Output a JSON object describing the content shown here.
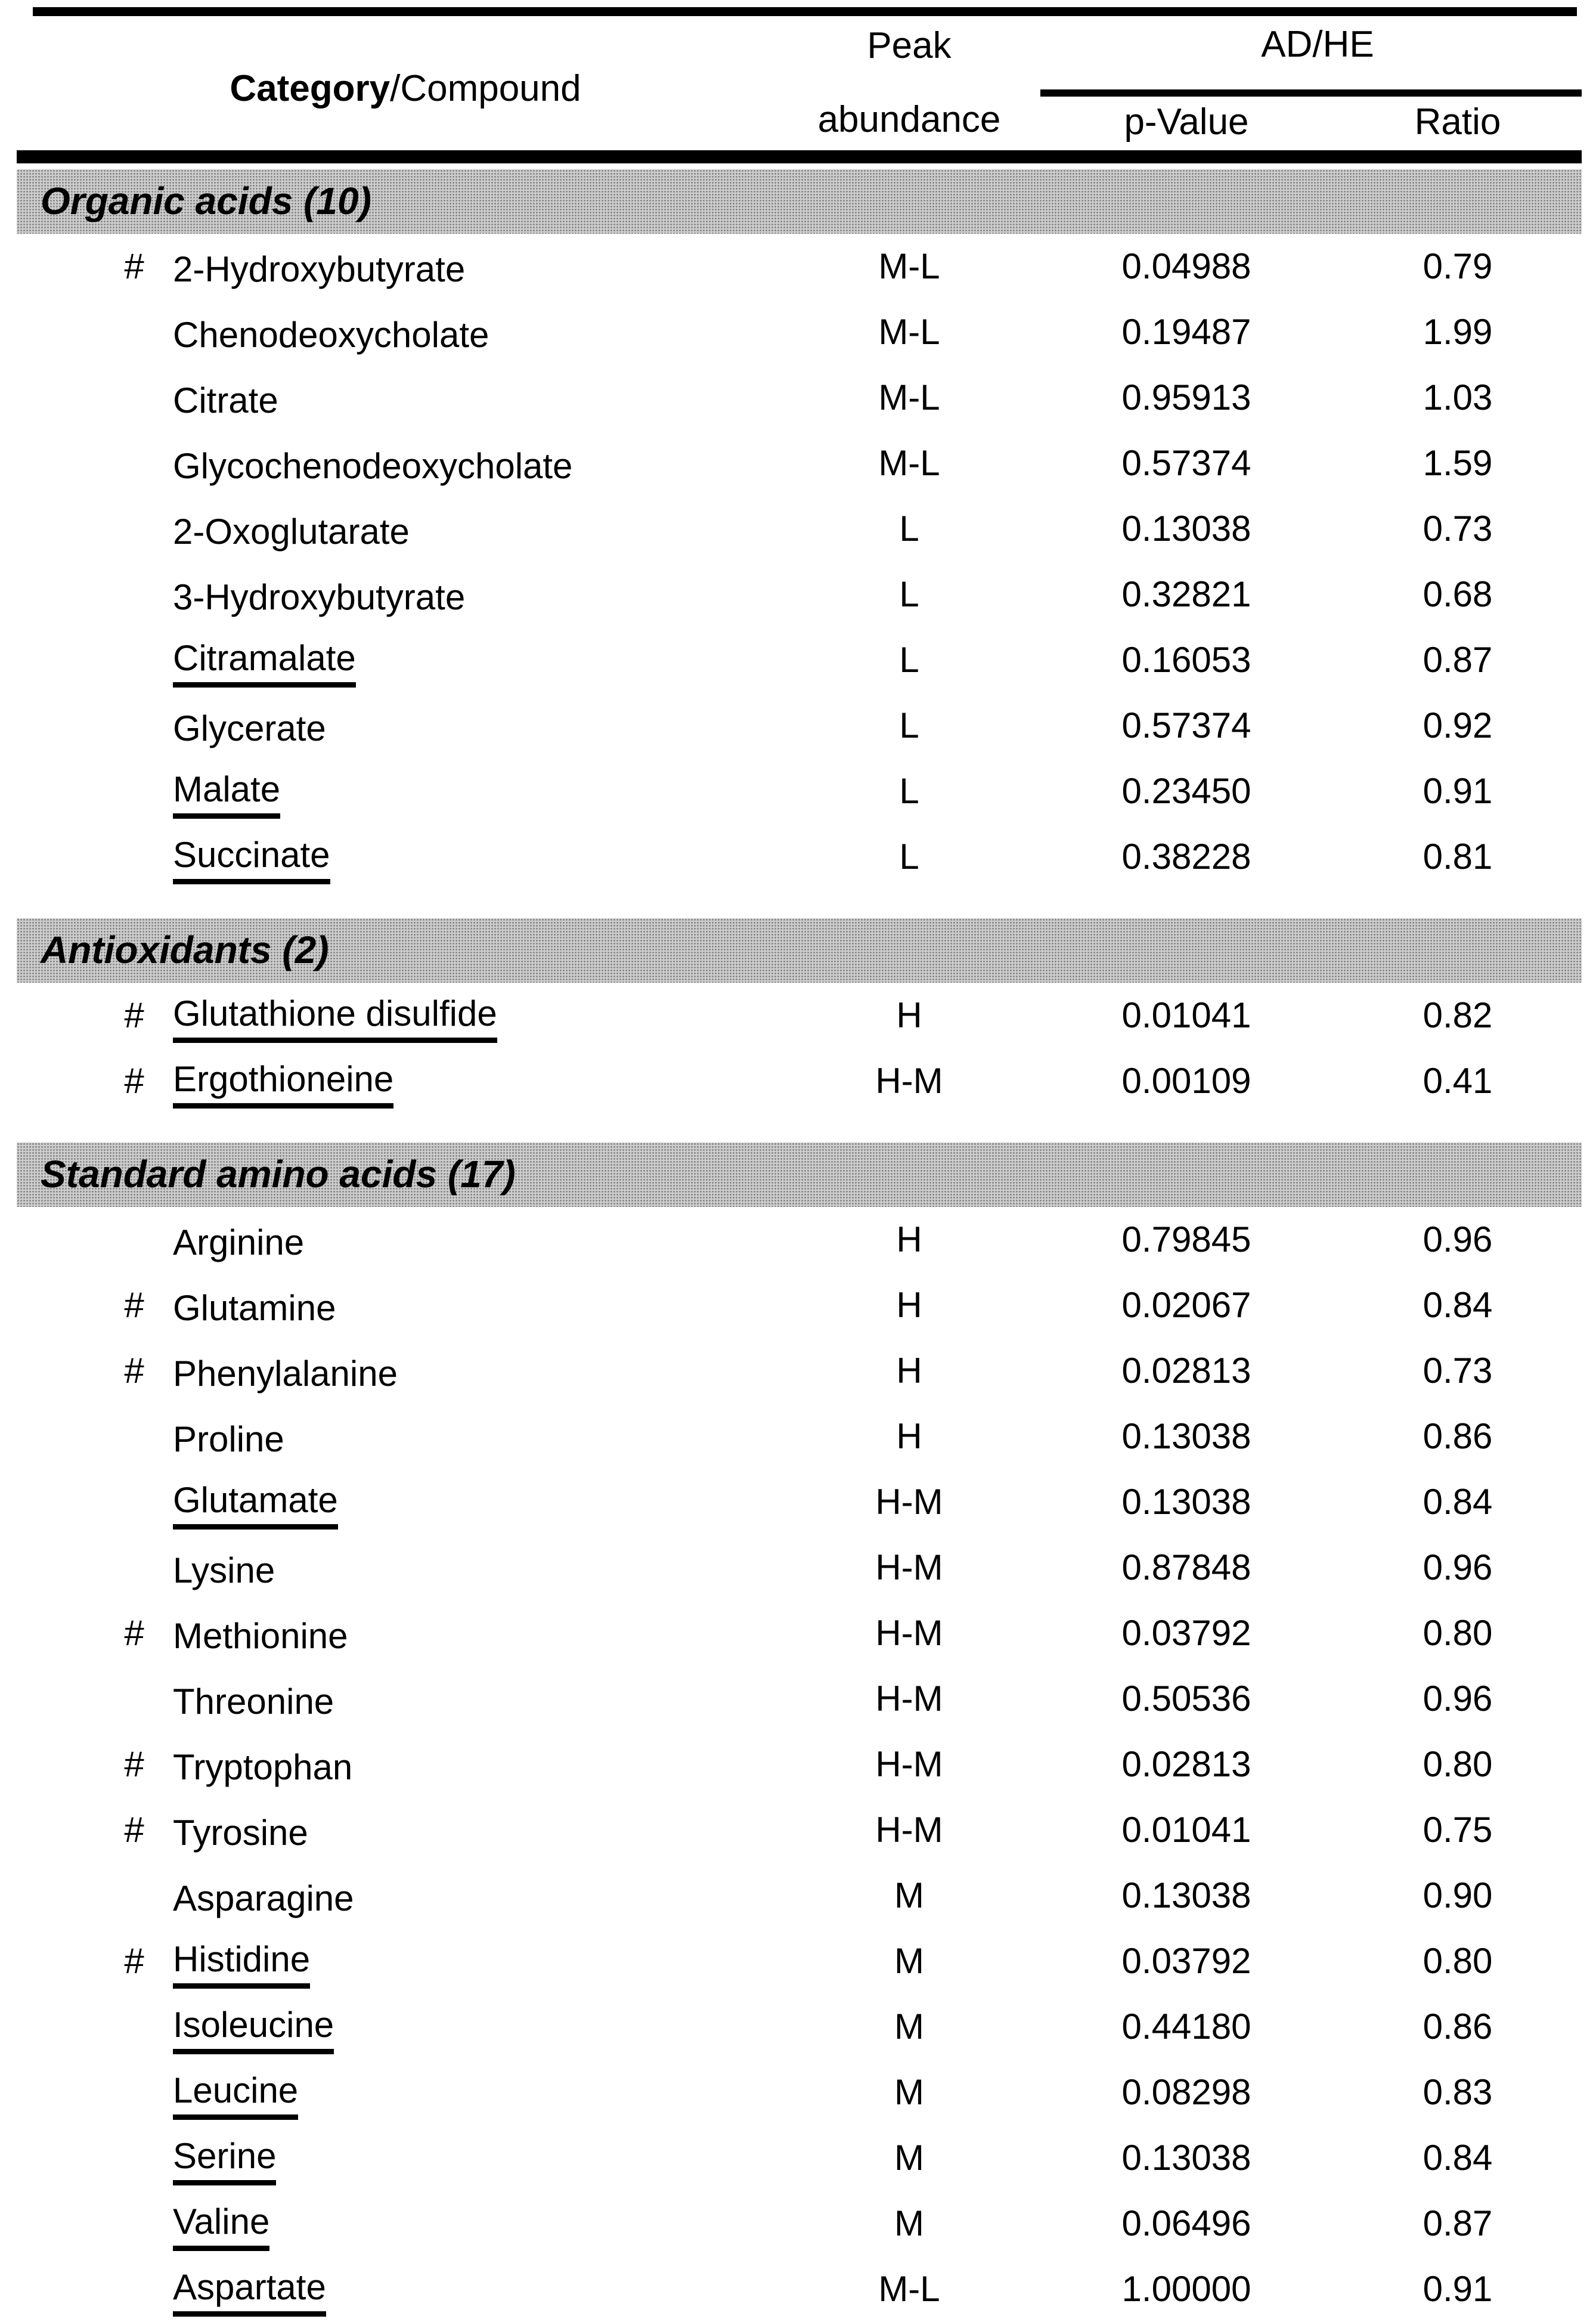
{
  "colors": {
    "text": "#000000",
    "section_bar_bg": "#cccccc",
    "rule": "#000000"
  },
  "header": {
    "category_bold": "Category",
    "category_regular": "/Compound",
    "peak_line1": "Peak",
    "peak_line2": "abundance",
    "group": "AD/HE",
    "p_value": "p-Value",
    "ratio": "Ratio"
  },
  "sections": [
    {
      "title": "Organic acids (10)",
      "rows": [
        {
          "hash": true,
          "name": "2-Hydroxybutyrate",
          "underline": false,
          "abundance": "M-L",
          "p_value": "0.04988",
          "ratio": "0.79"
        },
        {
          "hash": false,
          "name": "Chenodeoxycholate",
          "underline": false,
          "abundance": "M-L",
          "p_value": "0.19487",
          "ratio": "1.99"
        },
        {
          "hash": false,
          "name": "Citrate",
          "underline": false,
          "abundance": "M-L",
          "p_value": "0.95913",
          "ratio": "1.03"
        },
        {
          "hash": false,
          "name": "Glycochenodeoxycholate",
          "underline": false,
          "abundance": "M-L",
          "p_value": "0.57374",
          "ratio": "1.59"
        },
        {
          "hash": false,
          "name": "2-Oxoglutarate",
          "underline": false,
          "abundance": "L",
          "p_value": "0.13038",
          "ratio": "0.73"
        },
        {
          "hash": false,
          "name": "3-Hydroxybutyrate",
          "underline": false,
          "abundance": "L",
          "p_value": "0.32821",
          "ratio": "0.68"
        },
        {
          "hash": false,
          "name": "Citramalate",
          "underline": true,
          "abundance": "L",
          "p_value": "0.16053",
          "ratio": "0.87"
        },
        {
          "hash": false,
          "name": "Glycerate",
          "underline": false,
          "abundance": "L",
          "p_value": "0.57374",
          "ratio": "0.92"
        },
        {
          "hash": false,
          "name": "Malate",
          "underline": true,
          "abundance": "L",
          "p_value": "0.23450",
          "ratio": "0.91"
        },
        {
          "hash": false,
          "name": "Succinate",
          "underline": true,
          "abundance": "L",
          "p_value": "0.38228",
          "ratio": "0.81"
        }
      ]
    },
    {
      "title": "Antioxidants (2)",
      "rows": [
        {
          "hash": true,
          "name": "Glutathione disulfide",
          "underline": true,
          "abundance": "H",
          "p_value": "0.01041",
          "ratio": "0.82"
        },
        {
          "hash": true,
          "name": "Ergothioneine",
          "underline": true,
          "abundance": "H-M",
          "p_value": "0.00109",
          "ratio": "0.41"
        }
      ]
    },
    {
      "title": "Standard amino acids (17)",
      "rows": [
        {
          "hash": false,
          "name": "Arginine",
          "underline": false,
          "abundance": "H",
          "p_value": "0.79845",
          "ratio": "0.96"
        },
        {
          "hash": true,
          "name": "Glutamine",
          "underline": false,
          "abundance": "H",
          "p_value": "0.02067",
          "ratio": "0.84"
        },
        {
          "hash": true,
          "name": "Phenylalanine",
          "underline": false,
          "abundance": "H",
          "p_value": "0.02813",
          "ratio": "0.73"
        },
        {
          "hash": false,
          "name": "Proline",
          "underline": false,
          "abundance": "H",
          "p_value": "0.13038",
          "ratio": "0.86"
        },
        {
          "hash": false,
          "name": "Glutamate",
          "underline": true,
          "abundance": "H-M",
          "p_value": "0.13038",
          "ratio": "0.84"
        },
        {
          "hash": false,
          "name": "Lysine",
          "underline": false,
          "abundance": "H-M",
          "p_value": "0.87848",
          "ratio": "0.96"
        },
        {
          "hash": true,
          "name": "Methionine",
          "underline": false,
          "abundance": "H-M",
          "p_value": "0.03792",
          "ratio": "0.80"
        },
        {
          "hash": false,
          "name": "Threonine",
          "underline": false,
          "abundance": "H-M",
          "p_value": "0.50536",
          "ratio": "0.96"
        },
        {
          "hash": true,
          "name": "Tryptophan",
          "underline": false,
          "abundance": "H-M",
          "p_value": "0.02813",
          "ratio": "0.80"
        },
        {
          "hash": true,
          "name": "Tyrosine",
          "underline": false,
          "abundance": "H-M",
          "p_value": "0.01041",
          "ratio": "0.75"
        },
        {
          "hash": false,
          "name": "Asparagine",
          "underline": false,
          "abundance": "M",
          "p_value": "0.13038",
          "ratio": "0.90"
        },
        {
          "hash": true,
          "name": "Histidine",
          "underline": true,
          "abundance": "M",
          "p_value": "0.03792",
          "ratio": "0.80"
        },
        {
          "hash": false,
          "name": "Isoleucine",
          "underline": true,
          "abundance": "M",
          "p_value": "0.44180",
          "ratio": "0.86"
        },
        {
          "hash": false,
          "name": "Leucine",
          "underline": true,
          "abundance": "M",
          "p_value": "0.08298",
          "ratio": "0.83"
        },
        {
          "hash": false,
          "name": "Serine",
          "underline": true,
          "abundance": "M",
          "p_value": "0.13038",
          "ratio": "0.84"
        },
        {
          "hash": false,
          "name": "Valine",
          "underline": true,
          "abundance": "M",
          "p_value": "0.06496",
          "ratio": "0.87"
        },
        {
          "hash": false,
          "name": "Aspartate",
          "underline": true,
          "abundance": "M-L",
          "p_value": "1.00000",
          "ratio": "0.91"
        }
      ]
    }
  ]
}
